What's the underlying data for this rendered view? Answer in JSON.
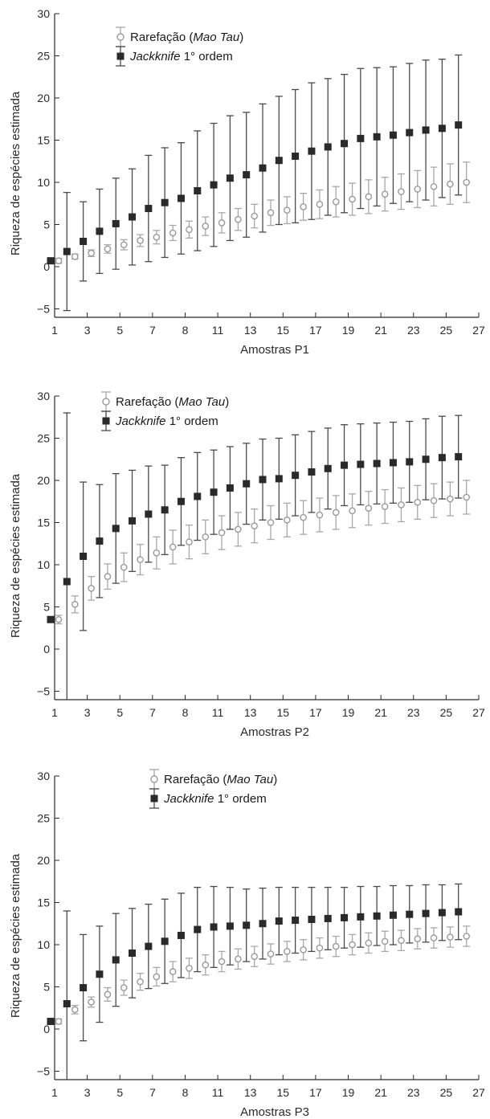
{
  "chart_data": [
    {
      "type": "scatter",
      "xlabel": "Amostras P1",
      "ylabel": "Riqueza de espécies estimada",
      "xlim": [
        1,
        27
      ],
      "ylim": [
        -6,
        30
      ],
      "xticks": [
        1,
        3,
        5,
        7,
        8,
        11,
        13,
        15,
        17,
        19,
        21,
        23,
        25,
        27
      ],
      "yticks": [
        -5,
        0,
        5,
        10,
        15,
        20,
        25,
        30
      ],
      "legend": "top-left",
      "grid": false,
      "series": [
        {
          "name": "Rarefação (Mao Tau)",
          "name_prefix": "Rarefação (",
          "name_italic": "Mao Tau",
          "name_suffix": ")",
          "marker": "open-circle",
          "color": "#9a9a9a",
          "x": [
            1,
            2,
            3,
            4,
            5,
            6,
            7,
            8,
            9,
            10,
            11,
            12,
            13,
            14,
            15,
            16,
            17,
            18,
            19,
            20,
            21,
            22,
            23,
            24,
            25,
            26
          ],
          "y": [
            0.7,
            1.2,
            1.6,
            2.1,
            2.6,
            3.1,
            3.5,
            4.0,
            4.4,
            4.8,
            5.2,
            5.6,
            6.0,
            6.4,
            6.7,
            7.1,
            7.4,
            7.7,
            8.0,
            8.3,
            8.6,
            8.9,
            9.2,
            9.5,
            9.8,
            10.0
          ],
          "err": [
            0.3,
            0.3,
            0.4,
            0.5,
            0.6,
            0.7,
            0.8,
            0.9,
            1.0,
            1.1,
            1.2,
            1.3,
            1.4,
            1.5,
            1.6,
            1.6,
            1.7,
            1.8,
            1.9,
            2.0,
            2.0,
            2.1,
            2.2,
            2.3,
            2.4,
            2.4
          ]
        },
        {
          "name": "Jackknife 1° ordem",
          "name_italic": "Jackknife",
          "name_suffix": " 1° ordem",
          "marker": "filled-square",
          "color": "#2a2a2a",
          "x": [
            1,
            2,
            3,
            4,
            5,
            6,
            7,
            8,
            9,
            10,
            11,
            12,
            13,
            14,
            15,
            16,
            17,
            18,
            19,
            20,
            21,
            22,
            23,
            24,
            25,
            26
          ],
          "y": [
            0.7,
            1.8,
            3.0,
            4.2,
            5.1,
            5.9,
            6.9,
            7.6,
            8.1,
            9.0,
            9.7,
            10.5,
            10.9,
            11.7,
            12.6,
            13.1,
            13.7,
            14.2,
            14.6,
            15.2,
            15.4,
            15.6,
            15.9,
            16.2,
            16.4,
            16.8
          ],
          "err": [
            0.2,
            7.0,
            4.7,
            5.0,
            5.4,
            5.7,
            6.3,
            6.5,
            6.6,
            7.1,
            7.3,
            7.4,
            7.4,
            7.6,
            7.6,
            7.9,
            8.1,
            8.1,
            8.2,
            8.3,
            8.2,
            8.1,
            8.2,
            8.3,
            8.2,
            8.3
          ]
        }
      ]
    },
    {
      "type": "scatter",
      "xlabel": "Amostras P2",
      "ylabel": "Riqueza de espécies estimada",
      "xlim": [
        1,
        27
      ],
      "ylim": [
        -6,
        30
      ],
      "xticks": [
        1,
        3,
        5,
        7,
        8,
        11,
        13,
        15,
        17,
        19,
        21,
        23,
        25,
        27
      ],
      "yticks": [
        -5,
        0,
        5,
        10,
        15,
        20,
        25,
        30
      ],
      "legend": "top-left",
      "grid": false,
      "series": [
        {
          "name": "Rarefação (Mao Tau)",
          "name_prefix": "Rarefação (",
          "name_italic": "Mao Tau",
          "name_suffix": ")",
          "marker": "open-circle",
          "color": "#9a9a9a",
          "x": [
            1,
            2,
            3,
            4,
            5,
            6,
            7,
            8,
            9,
            10,
            11,
            12,
            13,
            14,
            15,
            16,
            17,
            18,
            19,
            20,
            21,
            22,
            23,
            24,
            25,
            26
          ],
          "y": [
            3.5,
            5.3,
            7.2,
            8.6,
            9.7,
            10.6,
            11.4,
            12.1,
            12.7,
            13.3,
            13.8,
            14.2,
            14.6,
            15.0,
            15.3,
            15.6,
            15.9,
            16.2,
            16.4,
            16.7,
            16.9,
            17.1,
            17.4,
            17.6,
            17.8,
            18.0
          ],
          "err": [
            0.5,
            1.0,
            1.4,
            1.5,
            1.7,
            1.8,
            1.9,
            2.0,
            2.0,
            2.0,
            2.0,
            2.0,
            2.0,
            2.0,
            2.0,
            2.0,
            2.0,
            2.0,
            2.0,
            2.0,
            2.0,
            2.0,
            2.0,
            2.0,
            2.0,
            2.0
          ]
        },
        {
          "name": "Jackknife 1° ordem",
          "name_italic": "Jackknife",
          "name_suffix": " 1° ordem",
          "marker": "filled-square",
          "color": "#2a2a2a",
          "x": [
            1,
            2,
            3,
            4,
            5,
            6,
            7,
            8,
            9,
            10,
            11,
            12,
            13,
            14,
            15,
            16,
            17,
            18,
            19,
            20,
            21,
            22,
            23,
            24,
            25,
            26
          ],
          "y": [
            3.5,
            8.0,
            11.0,
            12.8,
            14.3,
            15.2,
            16.0,
            16.5,
            17.5,
            18.1,
            18.6,
            19.1,
            19.6,
            20.1,
            20.2,
            20.6,
            21.0,
            21.4,
            21.8,
            21.9,
            22.0,
            22.1,
            22.2,
            22.5,
            22.7,
            22.8
          ],
          "err": [
            0.3,
            20.0,
            8.8,
            6.7,
            6.5,
            6.0,
            5.7,
            5.3,
            5.2,
            5.2,
            5.0,
            4.9,
            4.8,
            4.8,
            4.8,
            4.8,
            4.8,
            4.8,
            4.8,
            4.8,
            4.8,
            4.8,
            4.8,
            4.8,
            4.9,
            4.9
          ]
        }
      ]
    },
    {
      "type": "scatter",
      "xlabel": "Amostras P3",
      "ylabel": "Riqueza de espécies estimada",
      "xlim": [
        1,
        27
      ],
      "ylim": [
        -6,
        30
      ],
      "xticks": [
        1,
        3,
        5,
        7,
        8,
        11,
        13,
        15,
        17,
        19,
        21,
        23,
        25,
        27
      ],
      "yticks": [
        -5,
        0,
        5,
        10,
        15,
        20,
        25,
        30
      ],
      "legend": "top-center",
      "grid": false,
      "series": [
        {
          "name": "Rarefação (Mao Tau)",
          "name_prefix": "Rarefação (",
          "name_italic": "Mao Tau",
          "name_suffix": ")",
          "marker": "open-circle",
          "color": "#9a9a9a",
          "x": [
            1,
            2,
            3,
            4,
            5,
            6,
            7,
            8,
            9,
            10,
            11,
            12,
            13,
            14,
            15,
            16,
            17,
            18,
            19,
            20,
            21,
            22,
            23,
            24,
            25,
            26
          ],
          "y": [
            0.9,
            2.3,
            3.2,
            4.1,
            4.9,
            5.6,
            6.2,
            6.8,
            7.2,
            7.6,
            8.0,
            8.3,
            8.6,
            8.9,
            9.2,
            9.4,
            9.6,
            9.8,
            10.0,
            10.2,
            10.4,
            10.5,
            10.7,
            10.8,
            10.9,
            11.0
          ],
          "err": [
            0.3,
            0.5,
            0.6,
            0.8,
            0.9,
            1.0,
            1.1,
            1.2,
            1.2,
            1.2,
            1.2,
            1.2,
            1.2,
            1.2,
            1.2,
            1.2,
            1.2,
            1.2,
            1.2,
            1.2,
            1.2,
            1.2,
            1.2,
            1.2,
            1.2,
            1.2
          ]
        },
        {
          "name": "Jackknife 1° ordem",
          "name_italic": "Jackknife",
          "name_suffix": " 1° ordem",
          "marker": "filled-square",
          "color": "#2a2a2a",
          "x": [
            1,
            2,
            3,
            4,
            5,
            6,
            7,
            8,
            9,
            10,
            11,
            12,
            13,
            14,
            15,
            16,
            17,
            18,
            19,
            20,
            21,
            22,
            23,
            24,
            25,
            26
          ],
          "y": [
            0.9,
            3.0,
            4.9,
            6.5,
            8.2,
            9.0,
            9.8,
            10.4,
            11.1,
            11.8,
            12.1,
            12.2,
            12.3,
            12.5,
            12.8,
            12.9,
            13.0,
            13.1,
            13.2,
            13.3,
            13.4,
            13.5,
            13.6,
            13.7,
            13.8,
            13.9
          ],
          "err": [
            0.2,
            11.0,
            6.3,
            5.7,
            5.5,
            5.3,
            5.0,
            5.0,
            5.0,
            5.0,
            4.8,
            4.6,
            4.3,
            4.2,
            4.0,
            3.9,
            3.8,
            3.7,
            3.6,
            3.6,
            3.5,
            3.5,
            3.4,
            3.4,
            3.3,
            3.3
          ]
        }
      ]
    }
  ]
}
